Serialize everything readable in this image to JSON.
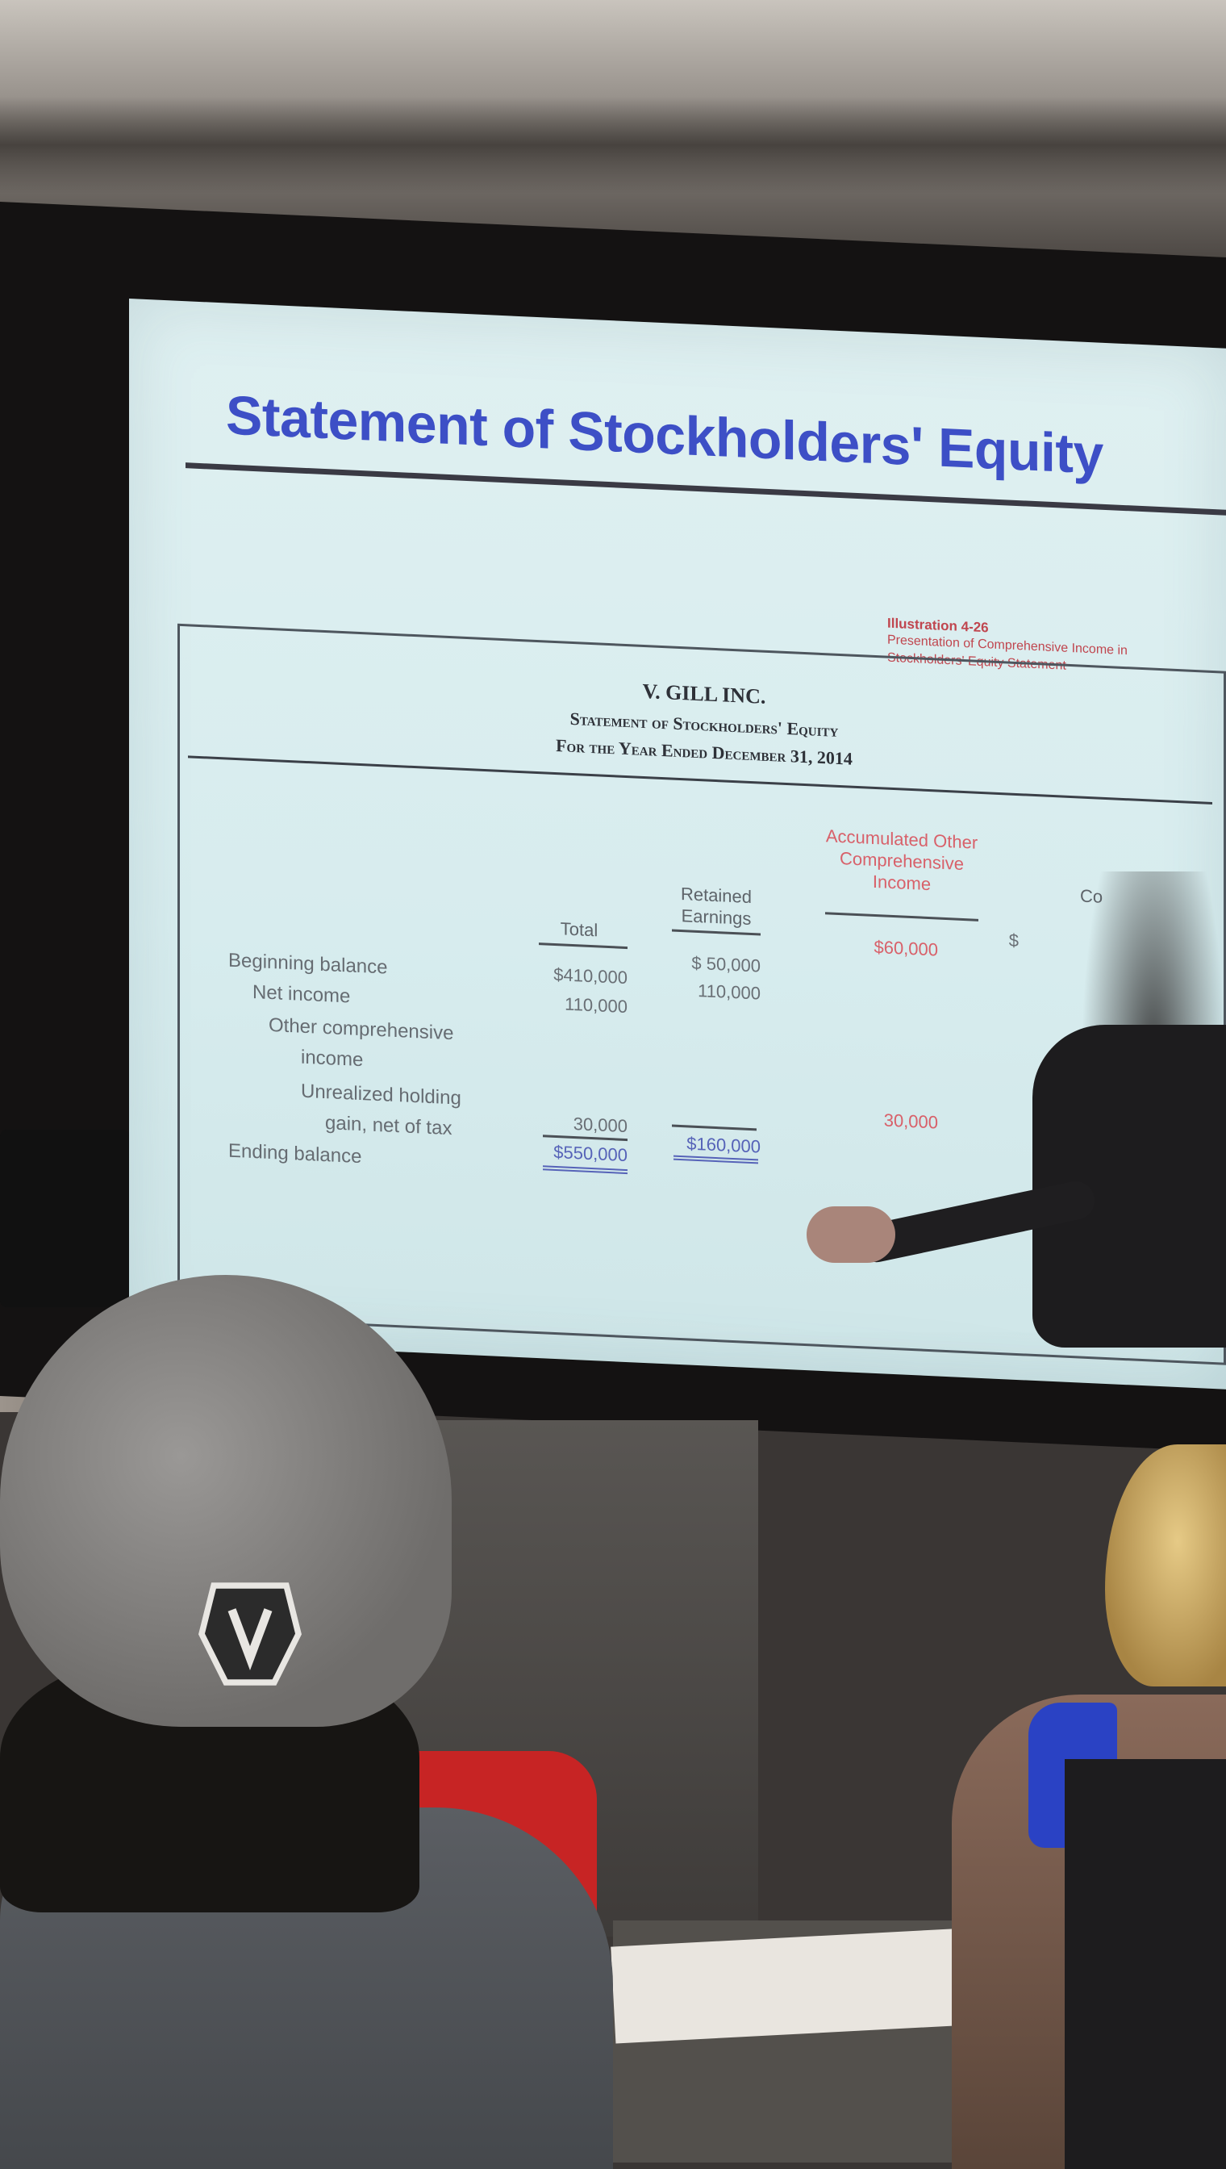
{
  "slide": {
    "title": "Statement of Stockholders' Equity",
    "illustration_number": "Illustration 4-26",
    "illustration_caption": "Presentation of Comprehensive Income in Stockholders' Equity Statement"
  },
  "statement": {
    "company": "V. GILL INC.",
    "name": "Statement of Stockholders' Equity",
    "period": "For the Year Ended December 31, 2014",
    "columns": [
      {
        "label": "Total"
      },
      {
        "label": "Retained Earnings"
      },
      {
        "label": "Accumulated Other Comprehensive Income"
      },
      {
        "label": "Co"
      }
    ],
    "rows": [
      {
        "label": "Beginning balance",
        "values": [
          "$410,000",
          "$ 50,000",
          "$60,000",
          "$"
        ]
      },
      {
        "label": "Net income",
        "values": [
          "110,000",
          "110,000",
          "",
          ""
        ]
      },
      {
        "label": "Other comprehensive",
        "values": [
          "",
          "",
          "",
          ""
        ]
      },
      {
        "label": "income",
        "values": [
          "",
          "",
          "",
          ""
        ]
      },
      {
        "label": "Unrealized holding",
        "values": [
          "",
          "",
          "",
          ""
        ]
      },
      {
        "label": "gain, net of tax",
        "values": [
          "30,000",
          "",
          "30,000",
          ""
        ]
      },
      {
        "label": "Ending balance",
        "values": [
          "$550,000",
          "$160,000",
          "",
          ""
        ]
      }
    ]
  },
  "colors": {
    "title_blue": "#3d4fc6",
    "accent_red": "#d8616a",
    "double_underline_blue": "#5663b8"
  }
}
